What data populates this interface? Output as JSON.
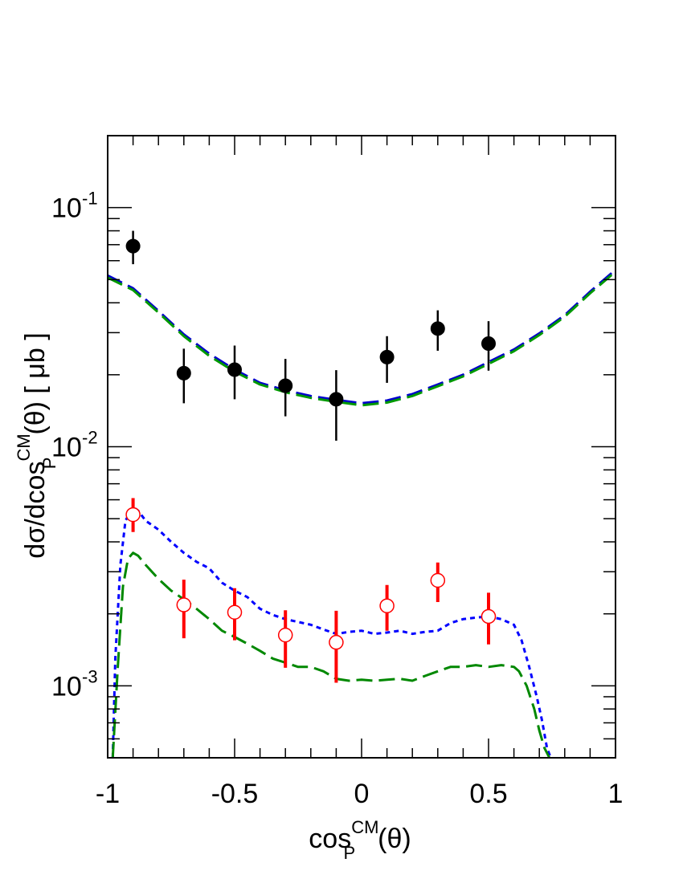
{
  "chart_data": {
    "type": "scatter",
    "xlabel": {
      "main": "cos",
      "sup": "CM",
      "sub": "P",
      "tail": "(θ)"
    },
    "ylabel": {
      "main": "dσ/dcos",
      "sup": "CM",
      "sub": "P",
      "tail": "(θ) [ μb ]"
    },
    "xlim": [
      -1,
      1
    ],
    "ylim": [
      0.0005,
      0.2
    ],
    "yscale": "log",
    "x_ticks": [
      {
        "value": -1,
        "label": "-1"
      },
      {
        "value": -0.5,
        "label": "-0.5"
      },
      {
        "value": 0,
        "label": "0"
      },
      {
        "value": 0.5,
        "label": "0.5"
      },
      {
        "value": 1,
        "label": "1"
      }
    ],
    "y_ticks": [
      {
        "value": 0.001,
        "base": "10",
        "exp": "-3"
      },
      {
        "value": 0.01,
        "base": "10",
        "exp": "-2"
      },
      {
        "value": 0.1,
        "base": "10",
        "exp": "-1"
      }
    ],
    "grid": false,
    "series": [
      {
        "kind": "points",
        "marker": "filled-circle",
        "color": "#000000",
        "x": [
          -0.9,
          -0.7,
          -0.5,
          -0.3,
          -0.1,
          0.1,
          0.3,
          0.5
        ],
        "y": [
          0.069,
          0.0203,
          0.021,
          0.018,
          0.0158,
          0.0237,
          0.0312,
          0.027
        ],
        "err_low": [
          0.058,
          0.0152,
          0.0158,
          0.0134,
          0.0106,
          0.0185,
          0.0252,
          0.0208
        ],
        "err_high": [
          0.08,
          0.0257,
          0.0265,
          0.0233,
          0.0209,
          0.029,
          0.0372,
          0.0335
        ]
      },
      {
        "kind": "points",
        "marker": "open-circle",
        "color": "#ff0000",
        "x": [
          -0.9,
          -0.7,
          -0.5,
          -0.3,
          -0.1,
          0.1,
          0.3,
          0.5
        ],
        "y": [
          0.0052,
          0.00218,
          0.00203,
          0.00163,
          0.00152,
          0.00216,
          0.00276,
          0.00195
        ],
        "err_low": [
          0.0044,
          0.00158,
          0.00155,
          0.00119,
          0.00103,
          0.0017,
          0.00224,
          0.00149
        ],
        "err_high": [
          0.0061,
          0.00278,
          0.00256,
          0.00207,
          0.00206,
          0.00264,
          0.00328,
          0.00245
        ]
      },
      {
        "kind": "line",
        "style": "long-dash",
        "color": "#0000cc",
        "x": [
          -1,
          -0.9,
          -0.8,
          -0.7,
          -0.6,
          -0.5,
          -0.4,
          -0.3,
          -0.2,
          -0.1,
          0,
          0.1,
          0.2,
          0.3,
          0.4,
          0.5,
          0.6,
          0.7,
          0.8,
          0.9,
          1
        ],
        "y": [
          0.052,
          0.046,
          0.037,
          0.0295,
          0.0245,
          0.021,
          0.0185,
          0.0172,
          0.0163,
          0.0157,
          0.0152,
          0.0156,
          0.0166,
          0.0182,
          0.02,
          0.0226,
          0.0255,
          0.0298,
          0.0355,
          0.0445,
          0.055
        ]
      },
      {
        "kind": "line",
        "style": "long-dash",
        "color": "#009900",
        "x": [
          -1,
          -0.9,
          -0.8,
          -0.7,
          -0.6,
          -0.5,
          -0.4,
          -0.3,
          -0.2,
          -0.1,
          0,
          0.1,
          0.2,
          0.3,
          0.4,
          0.5,
          0.6,
          0.7,
          0.8,
          0.9,
          1
        ],
        "y": [
          0.051,
          0.0452,
          0.0364,
          0.029,
          0.024,
          0.0206,
          0.0182,
          0.0169,
          0.016,
          0.0154,
          0.0149,
          0.0153,
          0.0163,
          0.0179,
          0.0197,
          0.0222,
          0.0251,
          0.0293,
          0.035,
          0.0438,
          0.054
        ]
      },
      {
        "kind": "line",
        "style": "short-dash",
        "color": "#0000ff",
        "x": [
          -0.98,
          -0.97,
          -0.95,
          -0.93,
          -0.9,
          -0.88,
          -0.85,
          -0.8,
          -0.75,
          -0.7,
          -0.65,
          -0.6,
          -0.55,
          -0.5,
          -0.45,
          -0.4,
          -0.35,
          -0.3,
          -0.25,
          -0.2,
          -0.15,
          -0.1,
          -0.05,
          0,
          0.05,
          0.1,
          0.15,
          0.2,
          0.25,
          0.3,
          0.35,
          0.4,
          0.45,
          0.5,
          0.55,
          0.6,
          0.63,
          0.66,
          0.69,
          0.71,
          0.73,
          0.745
        ],
        "y": [
          0.0005,
          0.0013,
          0.0032,
          0.0049,
          0.0056,
          0.0054,
          0.0049,
          0.0045,
          0.004,
          0.0036,
          0.0033,
          0.0031,
          0.0027,
          0.0025,
          0.00235,
          0.0021,
          0.00198,
          0.0019,
          0.00185,
          0.0018,
          0.00172,
          0.00165,
          0.00168,
          0.0017,
          0.00165,
          0.00167,
          0.0017,
          0.00165,
          0.00168,
          0.0017,
          0.00183,
          0.0019,
          0.00193,
          0.00195,
          0.0019,
          0.0018,
          0.00155,
          0.0012,
          0.0009,
          0.00072,
          0.00055,
          0.0005
        ]
      },
      {
        "kind": "line",
        "style": "long-dash",
        "color": "#008800",
        "x": [
          -0.98,
          -0.96,
          -0.94,
          -0.92,
          -0.9,
          -0.88,
          -0.85,
          -0.8,
          -0.75,
          -0.7,
          -0.65,
          -0.6,
          -0.55,
          -0.5,
          -0.45,
          -0.4,
          -0.35,
          -0.3,
          -0.25,
          -0.2,
          -0.15,
          -0.1,
          -0.05,
          0,
          0.05,
          0.1,
          0.15,
          0.2,
          0.25,
          0.3,
          0.35,
          0.4,
          0.45,
          0.5,
          0.55,
          0.6,
          0.62,
          0.65,
          0.68,
          0.7,
          0.72,
          0.74
        ],
        "y": [
          0.0005,
          0.0012,
          0.0026,
          0.0034,
          0.0036,
          0.0035,
          0.0032,
          0.0028,
          0.0025,
          0.0023,
          0.0021,
          0.0019,
          0.0017,
          0.0016,
          0.0015,
          0.0014,
          0.0013,
          0.00125,
          0.0012,
          0.0012,
          0.00115,
          0.00107,
          0.00105,
          0.00106,
          0.00105,
          0.00106,
          0.00107,
          0.00105,
          0.0011,
          0.00115,
          0.0012,
          0.0012,
          0.00122,
          0.0012,
          0.00122,
          0.0012,
          0.00115,
          0.001,
          0.0008,
          0.00065,
          0.00055,
          0.0005
        ]
      }
    ]
  }
}
